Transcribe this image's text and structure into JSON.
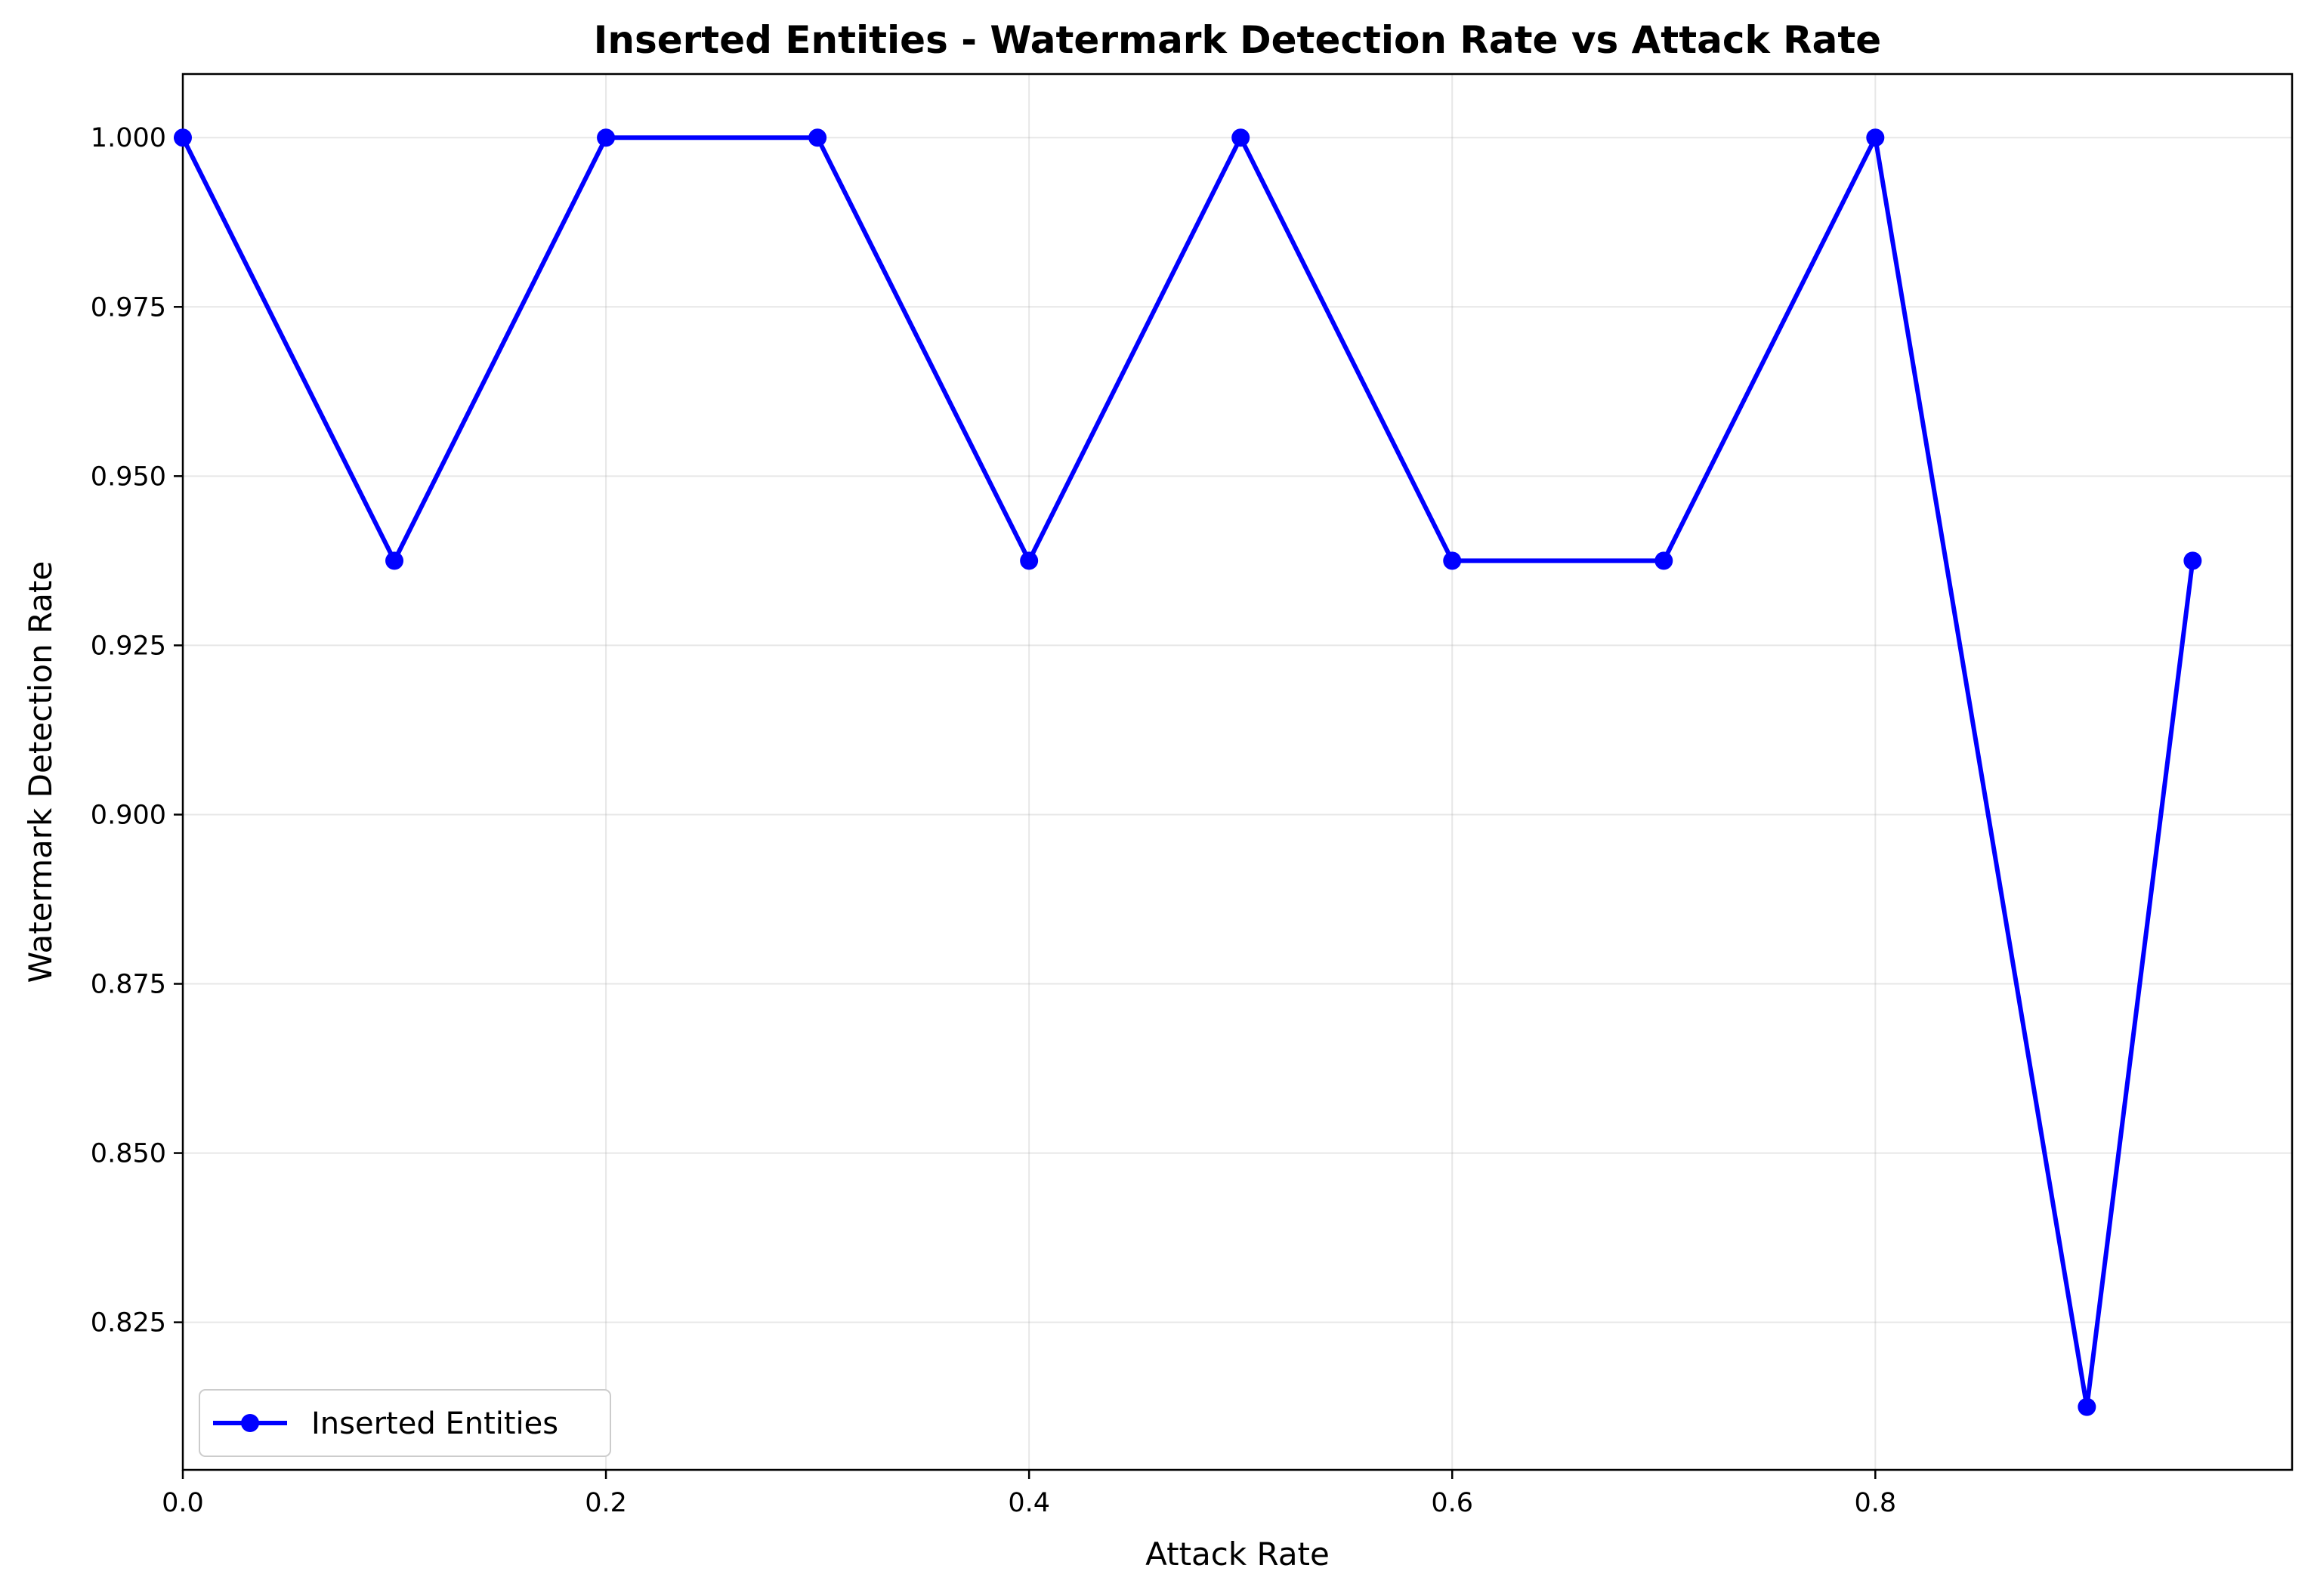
{
  "chart_data": {
    "type": "line",
    "title": "Inserted Entities - Watermark Detection Rate vs Attack Rate",
    "xlabel": "Attack Rate",
    "ylabel": "Watermark Detection Rate",
    "xlim": [
      0.0,
      0.997
    ],
    "ylim": [
      0.8032,
      1.0094
    ],
    "xticks": [
      0.0,
      0.2,
      0.4,
      0.6,
      0.8
    ],
    "xtick_labels": [
      "0.0",
      "0.2",
      "0.4",
      "0.6",
      "0.8"
    ],
    "yticks": [
      0.825,
      0.85,
      0.875,
      0.9,
      0.925,
      0.95,
      0.975,
      1.0
    ],
    "ytick_labels": [
      "0.825",
      "0.850",
      "0.875",
      "0.900",
      "0.925",
      "0.950",
      "0.975",
      "1.000"
    ],
    "grid": true,
    "legend_position": "lower-left",
    "series": [
      {
        "name": "Inserted Entities",
        "color": "#0000ff",
        "marker": "circle",
        "x": [
          0.0,
          0.1,
          0.2,
          0.3,
          0.4,
          0.5,
          0.6,
          0.7,
          0.8,
          0.9,
          0.95
        ],
        "y": [
          1.0,
          0.9375,
          1.0,
          1.0,
          0.9375,
          1.0,
          0.9375,
          0.9375,
          1.0,
          0.8125,
          0.9375
        ]
      }
    ]
  }
}
